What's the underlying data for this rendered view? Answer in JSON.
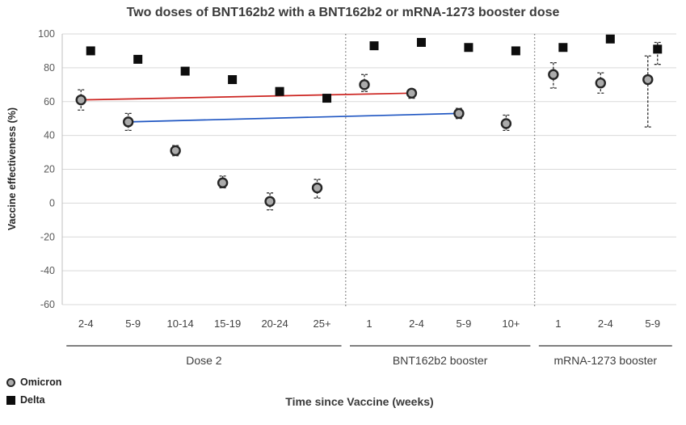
{
  "title": "Two doses of BNT162b2 with a BNT162b2 or mRNA-1273 booster dose",
  "axes": {
    "y_label": "Vaccine effectiveness (%)",
    "x_label": "Time since Vaccine (weeks)"
  },
  "legend": {
    "omicron_label": "Omicron",
    "delta_label": "Delta"
  },
  "colors": {
    "omicron_fill": "#ababab",
    "omicron_edge": "#262626",
    "delta_fill": "#0d0d0d",
    "gridline": "#d9d9d9",
    "axis_border": "#bfbfbf",
    "separator": "#7f7f7f",
    "group_line": "#7f7f7f",
    "red_connector": "#cc2420",
    "blue_connector": "#1f56c2",
    "tick_label": "#595959",
    "category_label": "#404040",
    "group_label": "#3d3d3d"
  },
  "chart_data": {
    "type": "scatter",
    "title": "Two doses of BNT162b2 with a BNT162b2 or mRNA-1273 booster dose",
    "xlabel": "Time since Vaccine (weeks)",
    "ylabel": "Vaccine effectiveness (%)",
    "ylim": [
      -60,
      100
    ],
    "yticks": [
      100,
      80,
      60,
      40,
      20,
      0,
      -20,
      -40,
      -60
    ],
    "grid": true,
    "legend_position": "bottom-left",
    "categories": [
      "2-4",
      "5-9",
      "10-14",
      "15-19",
      "20-24",
      "25+",
      "1",
      "2-4",
      "5-9",
      "10+",
      "1",
      "2-4",
      "5-9"
    ],
    "groups": [
      {
        "label": "Dose 2",
        "start": 0,
        "end": 5
      },
      {
        "label": "BNT162b2 booster",
        "start": 6,
        "end": 9
      },
      {
        "label": "mRNA-1273 booster",
        "start": 10,
        "end": 12
      }
    ],
    "separators_after": [
      5,
      9
    ],
    "series": [
      {
        "name": "Omicron",
        "marker": "circle",
        "values": [
          61,
          48,
          31,
          12,
          1,
          9,
          70,
          65,
          53,
          47,
          76,
          71,
          73
        ],
        "ci_low": [
          55,
          43,
          28,
          9,
          -4,
          3,
          66,
          62,
          50,
          43,
          68,
          65,
          45
        ],
        "ci_high": [
          67,
          53,
          34,
          16,
          6,
          14,
          76,
          67,
          56,
          52,
          83,
          77,
          87
        ]
      },
      {
        "name": "Delta",
        "marker": "square",
        "values": [
          90,
          85,
          78,
          73,
          66,
          62,
          93,
          95,
          92,
          90,
          92,
          97,
          91
        ],
        "ci_low": [
          null,
          null,
          null,
          null,
          null,
          null,
          null,
          null,
          null,
          null,
          null,
          null,
          82
        ],
        "ci_high": [
          null,
          null,
          null,
          null,
          null,
          null,
          null,
          null,
          null,
          null,
          null,
          null,
          95
        ]
      }
    ],
    "connectors": [
      {
        "series": "Omicron",
        "from": 0,
        "to": 7,
        "color": "#cc2420"
      },
      {
        "series": "Omicron",
        "from": 1,
        "to": 8,
        "color": "#1f56c2"
      }
    ]
  }
}
